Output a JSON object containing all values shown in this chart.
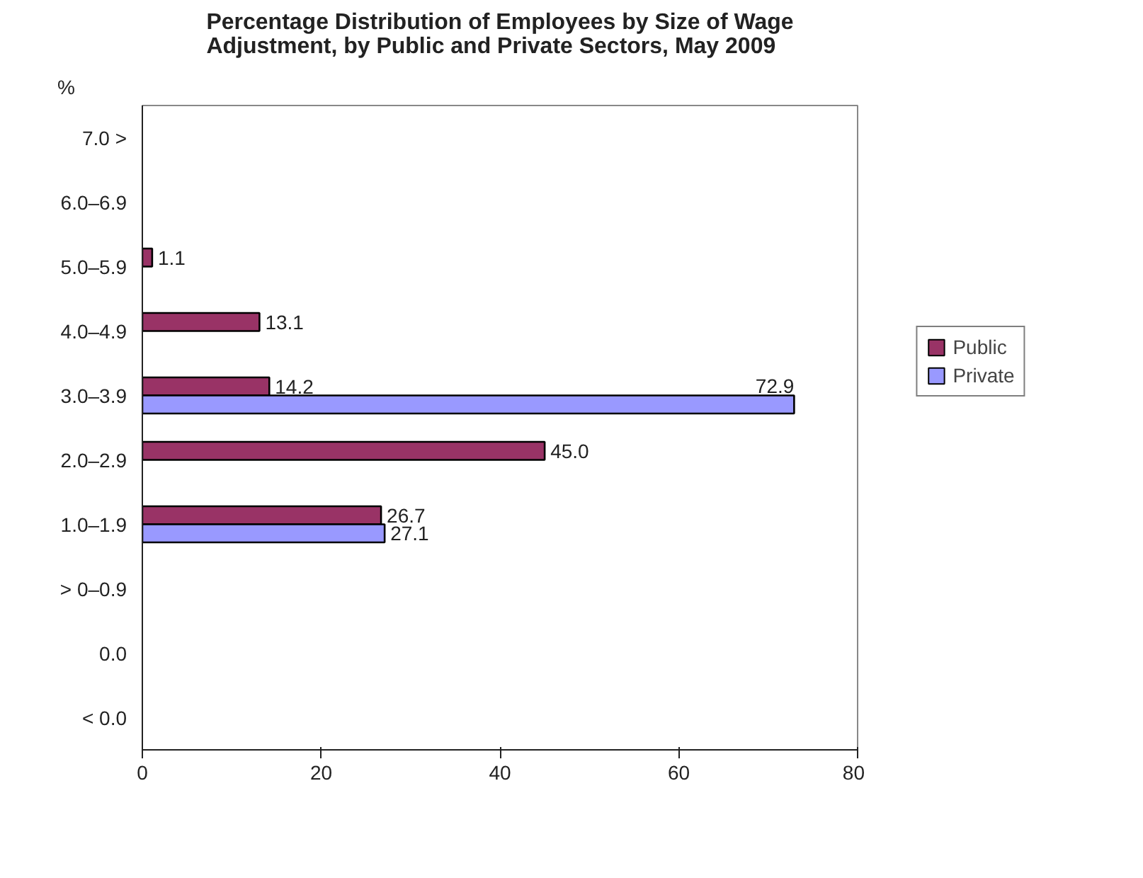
{
  "chart_data": {
    "type": "bar",
    "orientation": "horizontal",
    "title": "Percentage Distribution of Employees by Size of Wage Adjustment, by Public and Private Sectors, May 2009",
    "ylabel": "%",
    "categories": [
      "7.0 >",
      "6.0–6.9",
      "5.0–5.9",
      "4.0–4.9",
      "3.0–3.9",
      "2.0–2.9",
      "1.0–1.9",
      "> 0–0.9",
      "0.0",
      "< 0.0"
    ],
    "series": [
      {
        "name": "Public",
        "color": "#993366",
        "values": [
          null,
          null,
          1.1,
          13.1,
          14.2,
          45.0,
          26.7,
          null,
          null,
          null
        ],
        "value_labels": [
          null,
          null,
          "1.1",
          "13.1",
          "14.2",
          "45.0",
          "26.7",
          null,
          null,
          null
        ]
      },
      {
        "name": "Private",
        "color": "#9999ff",
        "values": [
          null,
          null,
          null,
          null,
          72.9,
          null,
          27.1,
          null,
          null,
          null
        ],
        "value_labels": [
          null,
          null,
          null,
          null,
          "72.9",
          null,
          "27.1",
          null,
          null,
          null
        ]
      }
    ],
    "xlim": [
      0,
      80
    ],
    "xticks": [
      0,
      20,
      40,
      60,
      80
    ],
    "grid": false,
    "legend": "right"
  }
}
